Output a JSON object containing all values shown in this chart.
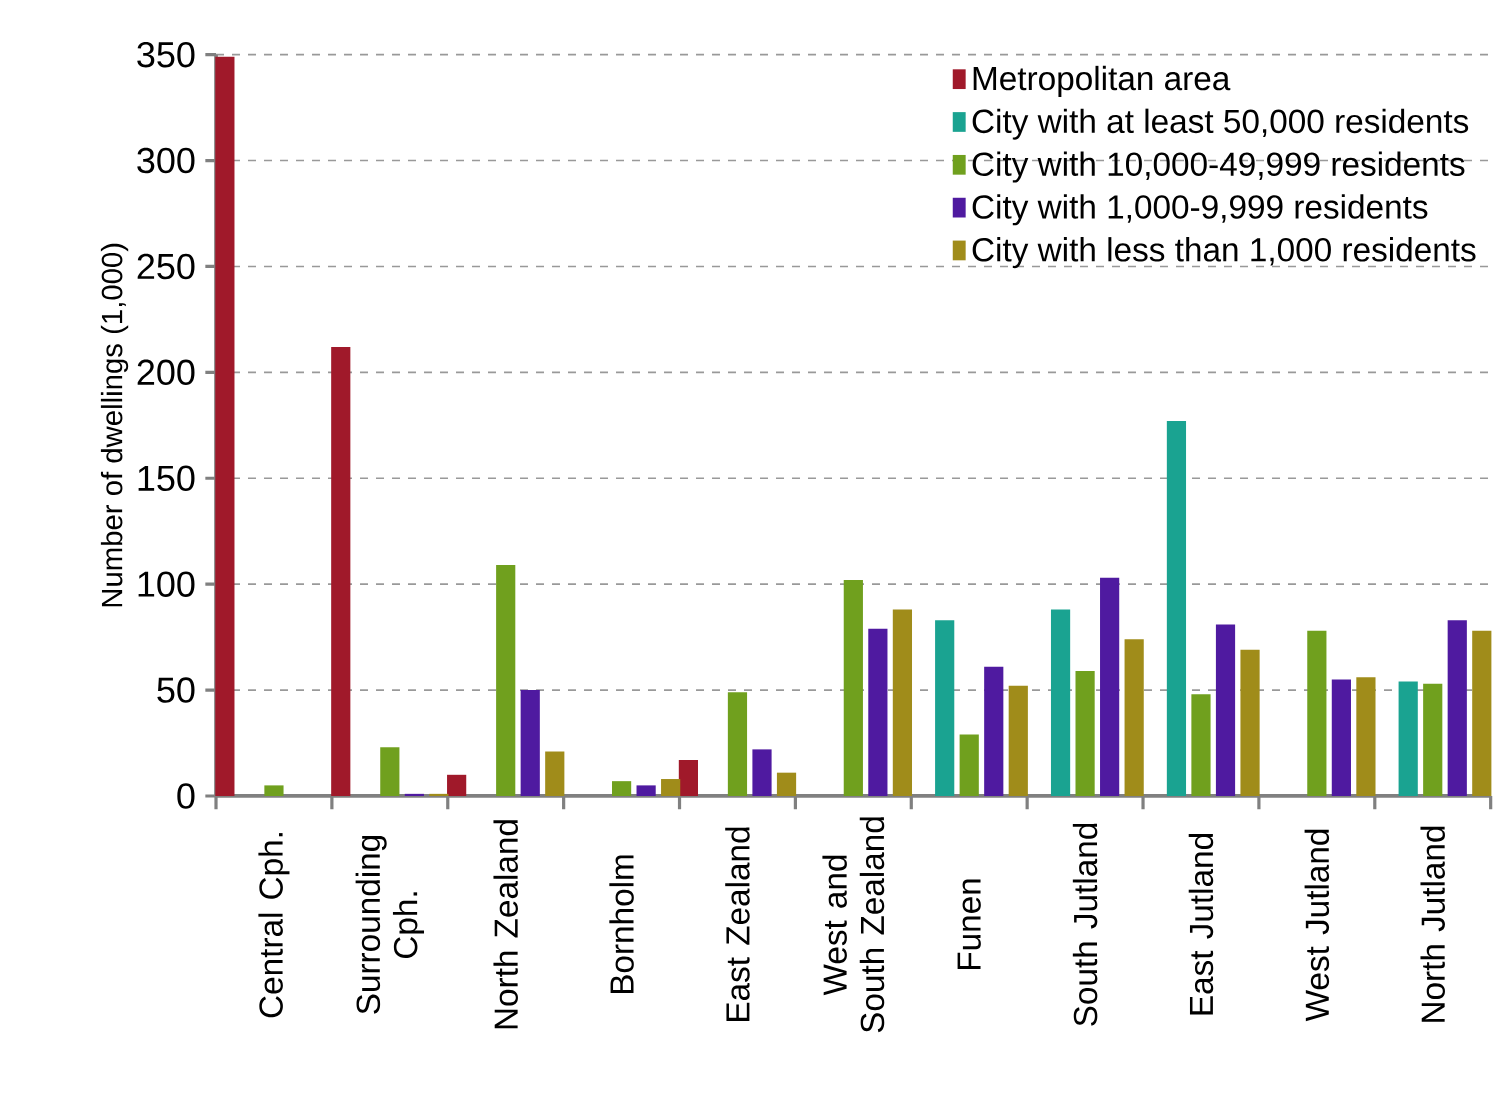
{
  "chart_data": {
    "type": "bar",
    "ylabel": "Number of dwellings (1,000)",
    "categories": [
      "Central Cph.",
      "Surrounding Cph.",
      "North Zealand",
      "Bornholm",
      "East Zealand",
      "West and South Zealand",
      "Funen",
      "South Jutland",
      "East Jutland",
      "West Jutland",
      "North Jutland"
    ],
    "series": [
      {
        "name": "Metropolitan area",
        "color": "#a0192a",
        "values": [
          349,
          212,
          10,
          null,
          17,
          null,
          null,
          null,
          null,
          null,
          null
        ]
      },
      {
        "name": "City with at least 50,000 residents",
        "color": "#1aa391",
        "values": [
          null,
          null,
          null,
          null,
          null,
          null,
          83,
          88,
          177,
          null,
          54
        ]
      },
      {
        "name": "City with 10,000-49,999 residents",
        "color": "#70a01e",
        "values": [
          5,
          23,
          109,
          7,
          49,
          102,
          29,
          59,
          48,
          78,
          53
        ]
      },
      {
        "name": "City with 1,000-9,999 residents",
        "color": "#4f1aa0",
        "values": [
          null,
          1,
          50,
          5,
          22,
          79,
          61,
          103,
          81,
          55,
          83
        ]
      },
      {
        "name": "City with less than 1,000 residents",
        "color": "#a08c1a",
        "values": [
          null,
          1,
          21,
          8,
          11,
          88,
          52,
          74,
          69,
          56,
          78
        ]
      }
    ],
    "ylim": [
      0,
      350
    ],
    "yticks": [
      0,
      50,
      100,
      150,
      200,
      250,
      300,
      350
    ],
    "grid": "y",
    "legend": "top right"
  }
}
